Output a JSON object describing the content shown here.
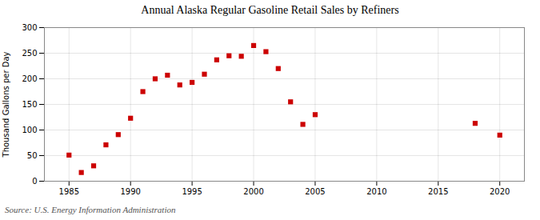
{
  "chart_data": {
    "type": "scatter",
    "title": "Annual Alaska Regular Gasoline Retail Sales by Refiners",
    "ylabel": "Thousand Gallons per Day",
    "source": "Source: U.S. Energy Information Administration",
    "x": [
      1985,
      1986,
      1987,
      1988,
      1989,
      1990,
      1991,
      1992,
      1993,
      1994,
      1995,
      1996,
      1997,
      1998,
      1999,
      2000,
      2001,
      2002,
      2003,
      2004,
      2005,
      2018,
      2020
    ],
    "values": [
      51,
      17,
      30,
      71,
      91,
      123,
      175,
      200,
      207,
      188,
      193,
      209,
      237,
      245,
      244,
      265,
      253,
      220,
      155,
      111,
      130,
      113,
      90
    ],
    "color": "#cc0000",
    "marker": "square",
    "xlim": [
      1983,
      2022
    ],
    "ylim": [
      0,
      300
    ],
    "xticks": [
      1985,
      1990,
      1995,
      2000,
      2005,
      2010,
      2015,
      2020
    ],
    "yticks": [
      0,
      50,
      100,
      150,
      200,
      250,
      300
    ],
    "grid": true
  }
}
